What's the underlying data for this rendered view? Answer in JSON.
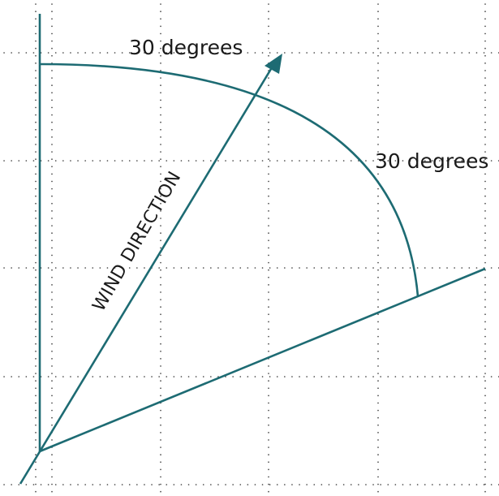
{
  "colors": {
    "teal": "#1d6b73",
    "grid": "#3a3a3a"
  },
  "labels": {
    "upper_angle": "30 degrees",
    "lower_angle": "30 degrees",
    "wind_direction": "WIND DIRECTION"
  }
}
